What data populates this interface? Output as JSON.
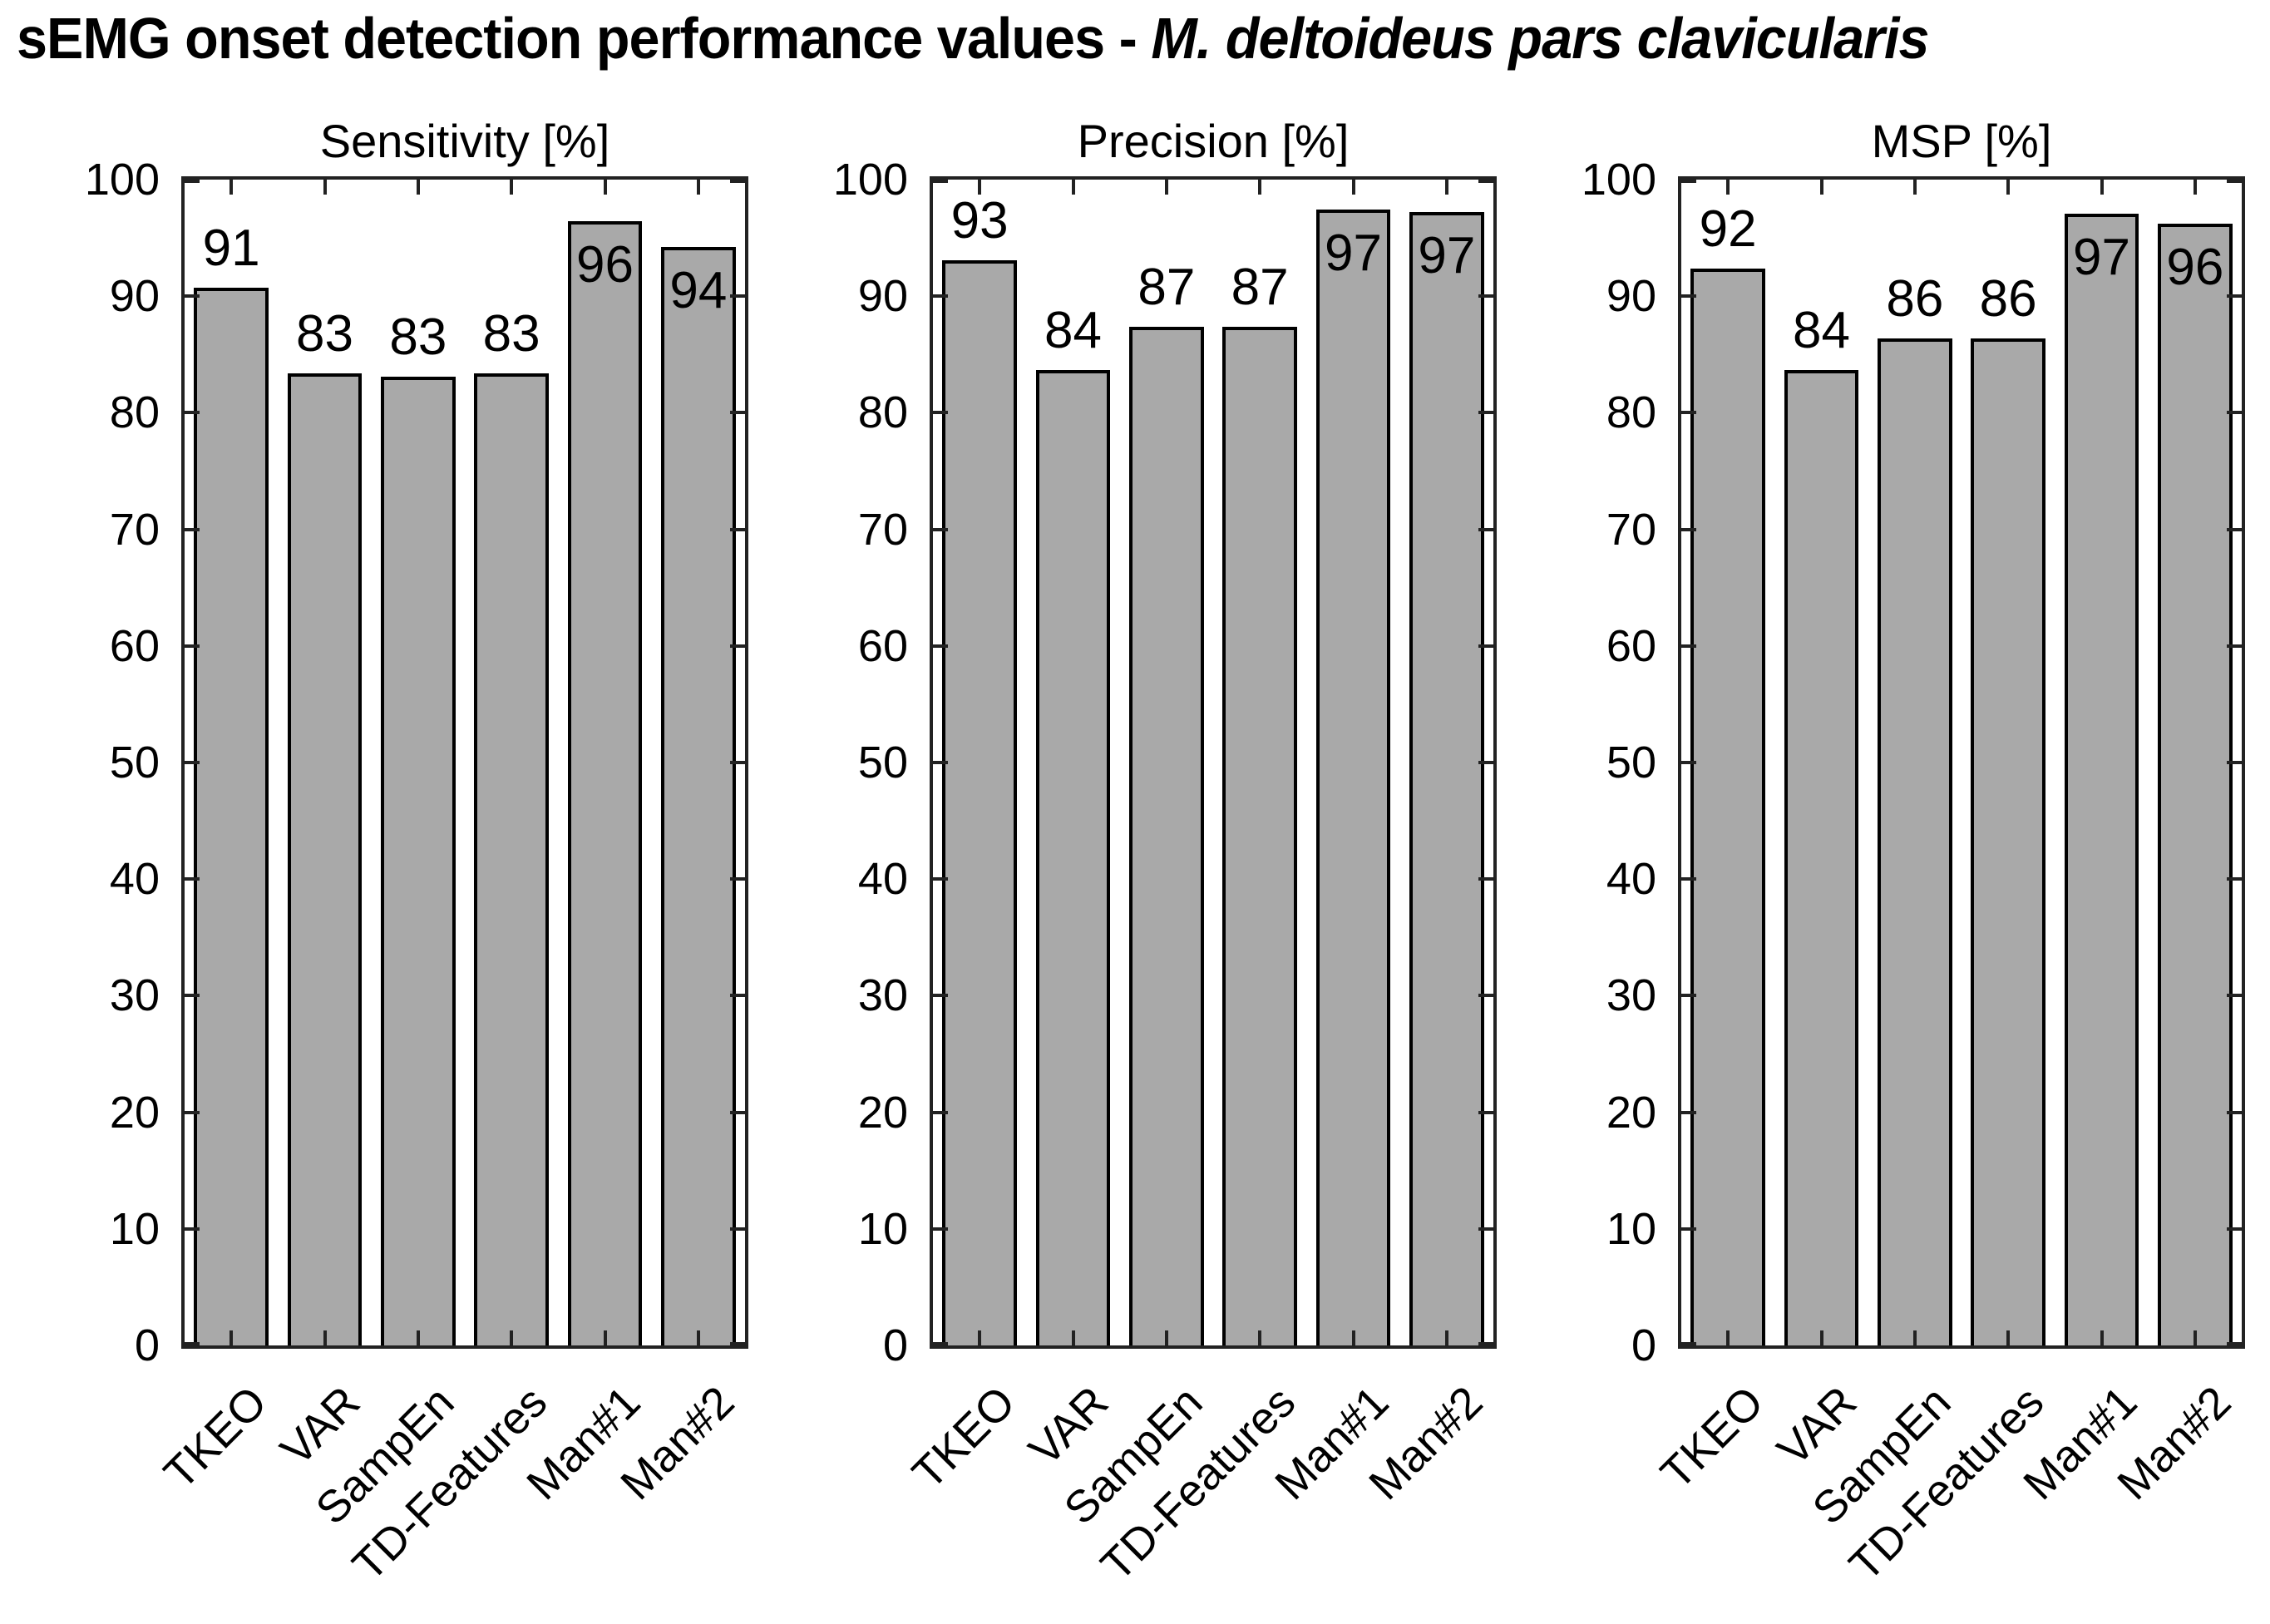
{
  "title": {
    "main": "sEMG onset detection performance values - ",
    "emphasis": "M. deltoideus pars clavicularis"
  },
  "colors": {
    "bar_fill": "#a9a9a9",
    "bar_edge": "#000000",
    "axis": "#222222",
    "text": "#000000",
    "background": "#ffffff"
  },
  "chart_data": [
    {
      "type": "bar",
      "title": "Sensitivity [%]",
      "categories": [
        "TKEO",
        "VAR",
        "SampEn",
        "TD-Features",
        "Man#1",
        "Man#2"
      ],
      "values": [
        90.7,
        83.4,
        83.1,
        83.4,
        96.4,
        94.2
      ],
      "bar_labels": [
        "91",
        "83",
        "83",
        "83",
        "96",
        "94"
      ],
      "label_placement": [
        "above",
        "above",
        "above",
        "above",
        "inside",
        "inside"
      ],
      "xlabel": "",
      "ylabel": "",
      "ylim": [
        0,
        100
      ],
      "yticks": [
        0,
        10,
        20,
        30,
        40,
        50,
        60,
        70,
        80,
        90,
        100
      ],
      "grid": false,
      "bar_width_fraction": 0.8
    },
    {
      "type": "bar",
      "title": "Precision [%]",
      "categories": [
        "TKEO",
        "VAR",
        "SampEn",
        "TD-Features",
        "Man#1",
        "Man#2"
      ],
      "values": [
        93.1,
        83.7,
        87.4,
        87.4,
        97.4,
        97.2
      ],
      "bar_labels": [
        "93",
        "84",
        "87",
        "87",
        "97",
        "97"
      ],
      "label_placement": [
        "above",
        "above",
        "above",
        "above",
        "inside",
        "inside"
      ],
      "xlabel": "",
      "ylabel": "",
      "ylim": [
        0,
        100
      ],
      "yticks": [
        0,
        10,
        20,
        30,
        40,
        50,
        60,
        70,
        80,
        90,
        100
      ],
      "grid": false,
      "bar_width_fraction": 0.8
    },
    {
      "type": "bar",
      "title": "MSP [%]",
      "categories": [
        "TKEO",
        "VAR",
        "SampEn",
        "TD-Features",
        "Man#1",
        "Man#2"
      ],
      "values": [
        92.4,
        83.7,
        86.4,
        86.4,
        97.1,
        96.2
      ],
      "bar_labels": [
        "92",
        "84",
        "86",
        "86",
        "97",
        "96"
      ],
      "label_placement": [
        "above",
        "above",
        "above",
        "above",
        "inside",
        "inside"
      ],
      "xlabel": "",
      "ylabel": "",
      "ylim": [
        0,
        100
      ],
      "yticks": [
        0,
        10,
        20,
        30,
        40,
        50,
        60,
        70,
        80,
        90,
        100
      ],
      "grid": false,
      "bar_width_fraction": 0.8
    }
  ]
}
